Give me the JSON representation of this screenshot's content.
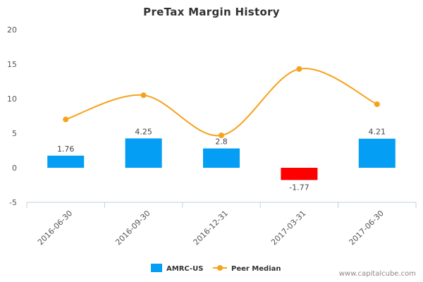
{
  "chart_data": {
    "type": "bar",
    "title": "PreTax Margin History",
    "categories": [
      "2016-06-30",
      "2016-09-30",
      "2016-12-31",
      "2017-03-31",
      "2017-06-30"
    ],
    "series": [
      {
        "name": "AMRC-US",
        "type": "bar",
        "values": [
          1.76,
          4.25,
          2.8,
          -1.77,
          4.21
        ],
        "color": "#049ef4",
        "negative_color": "#ff0000"
      },
      {
        "name": "Peer Median",
        "type": "line",
        "values": [
          7.0,
          10.5,
          4.7,
          14.3,
          9.2
        ],
        "color": "#f6a21d"
      }
    ],
    "data_labels": [
      "1.76",
      "4.25",
      "2.8",
      "-1.77",
      "4.21"
    ],
    "y_ticks": [
      "20",
      "15",
      "10",
      "5",
      "0",
      "-5"
    ],
    "ylim": [
      -5,
      20
    ],
    "xlabel": "",
    "ylabel": "",
    "grid": false,
    "legend_position": "bottom-center"
  },
  "watermark": "www.capitalcube.com"
}
